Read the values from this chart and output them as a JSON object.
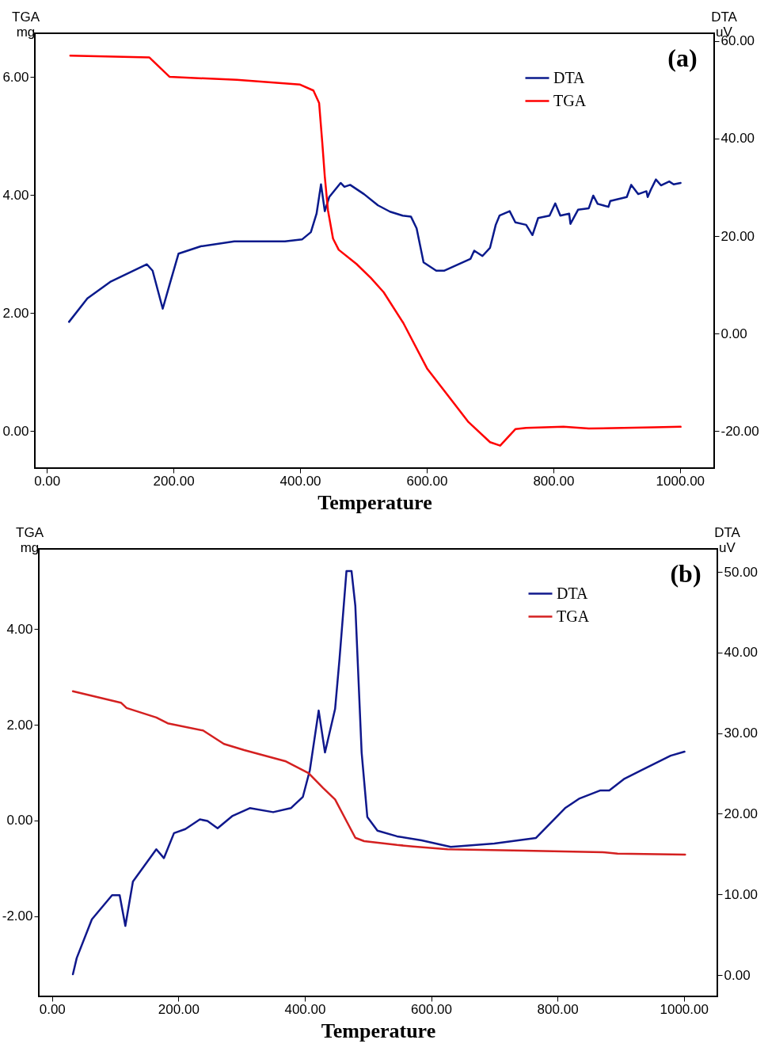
{
  "chart_data": [
    {
      "type": "line",
      "xlabel": "Temperature",
      "ylabel": "TGA\nmg",
      "y2label": "DTA\nuV",
      "annotations": [
        "(a)"
      ],
      "legend": "top right",
      "xlim": [
        -19,
        1054
      ],
      "xticks": [
        {
          "value": 0,
          "label": "0.00"
        },
        {
          "value": 200,
          "label": "200.00"
        },
        {
          "value": 400,
          "label": "400.00"
        },
        {
          "value": 600,
          "label": "600.00"
        },
        {
          "value": 800,
          "label": "800.00"
        },
        {
          "value": 1000,
          "label": "1000.00"
        }
      ],
      "ylim": [
        -0.63,
        6.74
      ],
      "yticks": [
        {
          "value": 0,
          "label": "0.00"
        },
        {
          "value": 2,
          "label": "2.00"
        },
        {
          "value": 4,
          "label": "4.00"
        },
        {
          "value": 6,
          "label": "6.00"
        }
      ],
      "y2lim": [
        -27.6,
        61.6
      ],
      "y2ticks": [
        {
          "value": -20,
          "label": "-20.00"
        },
        {
          "value": 0,
          "label": "0.00"
        },
        {
          "value": 20,
          "label": "20.00"
        },
        {
          "value": 40,
          "label": "40.00"
        },
        {
          "value": 60,
          "label": "60.00"
        }
      ],
      "series": [
        {
          "name": "DTA",
          "color": "#0a1a8c",
          "axis": "y2",
          "x": [
            35,
            64,
            100,
            158,
            167,
            183,
            194,
            208,
            243,
            296,
            376,
            403,
            417,
            426,
            433,
            439,
            446,
            464,
            470,
            479,
            501,
            523,
            542,
            562,
            575,
            584,
            595,
            615,
            628,
            669,
            675,
            688,
            700,
            709,
            715,
            731,
            740,
            757,
            767,
            776,
            794,
            803,
            811,
            825,
            827,
            839,
            856,
            863,
            870,
            887,
            890,
            916,
            923,
            934,
            947,
            949,
            954,
            962,
            970,
            983,
            990,
            1001
          ],
          "values": [
            2.4,
            7.2,
            10.6,
            14.2,
            12.9,
            5.1,
            10.1,
            16.4,
            17.9,
            18.9,
            18.9,
            19.3,
            20.8,
            24.6,
            30.6,
            25.1,
            28.0,
            30.9,
            30.1,
            30.5,
            28.6,
            26.3,
            25.0,
            24.2,
            24.0,
            21.6,
            14.6,
            12.9,
            12.9,
            15.3,
            17.0,
            15.9,
            17.6,
            22.3,
            24.2,
            25.1,
            22.8,
            22.3,
            20.2,
            23.7,
            24.2,
            26.7,
            24.2,
            24.6,
            22.5,
            25.4,
            25.7,
            28.3,
            26.6,
            26.0,
            27.2,
            28.0,
            30.5,
            28.6,
            29.2,
            28.0,
            29.5,
            31.6,
            30.4,
            31.2,
            30.6,
            30.9
          ]
        },
        {
          "name": "TGA",
          "color": "#ff0000",
          "x": [
            37,
            162,
            194,
            300,
            400,
            421,
            430,
            435,
            439,
            444,
            452,
            461,
            489,
            512,
            532,
            563,
            601,
            666,
            700,
            716,
            740,
            757,
            816,
            856,
            959,
            1001
          ],
          "values": [
            6.36,
            6.33,
            6.0,
            5.95,
            5.87,
            5.77,
            5.56,
            4.89,
            4.31,
            3.74,
            3.26,
            3.07,
            2.83,
            2.59,
            2.35,
            1.83,
            1.05,
            0.15,
            -0.19,
            -0.25,
            0.03,
            0.05,
            0.07,
            0.04,
            0.06,
            0.07
          ]
        }
      ]
    },
    {
      "type": "line",
      "xlabel": "Temperature",
      "ylabel": "TGA\nmg",
      "y2label": "DTA\nuV",
      "annotations": [
        "(b)"
      ],
      "legend": "top right",
      "xlim": [
        -21,
        1053
      ],
      "xticks": [
        {
          "value": 0,
          "label": "0.00"
        },
        {
          "value": 200,
          "label": "200.00"
        },
        {
          "value": 400,
          "label": "400.00"
        },
        {
          "value": 600,
          "label": "600.00"
        },
        {
          "value": 800,
          "label": "800.00"
        },
        {
          "value": 1000,
          "label": "1000.00"
        }
      ],
      "ylim": [
        -3.67,
        5.67
      ],
      "yticks": [
        {
          "value": -2,
          "label": "-2.00"
        },
        {
          "value": 0,
          "label": "0.00"
        },
        {
          "value": 2,
          "label": "2.00"
        },
        {
          "value": 4,
          "label": "4.00"
        }
      ],
      "y2lim": [
        -2.65,
        52.85
      ],
      "y2ticks": [
        {
          "value": 0,
          "label": "0.00"
        },
        {
          "value": 10,
          "label": "10.00"
        },
        {
          "value": 20,
          "label": "20.00"
        },
        {
          "value": 30,
          "label": "30.00"
        },
        {
          "value": 40,
          "label": "40.00"
        },
        {
          "value": 50,
          "label": "50.00"
        }
      ],
      "series": [
        {
          "name": "DTA",
          "color": "#10188c",
          "axis": "y2",
          "x": [
            33,
            39,
            63,
            95,
            107,
            116,
            128,
            165,
            177,
            193,
            211,
            234,
            246,
            262,
            285,
            313,
            350,
            378,
            397,
            408,
            422,
            432,
            448,
            455,
            466,
            474,
            480,
            490,
            499,
            515,
            546,
            585,
            631,
            700,
            766,
            812,
            835,
            868,
            882,
            905,
            933,
            979,
            1001
          ],
          "values": [
            0.1,
            2.1,
            6.9,
            9.9,
            9.9,
            6.1,
            11.6,
            15.6,
            14.5,
            17.6,
            18.1,
            19.3,
            19.1,
            18.2,
            19.7,
            20.7,
            20.2,
            20.7,
            22.1,
            25.4,
            32.8,
            27.6,
            33.0,
            39.2,
            50.1,
            50.1,
            45.8,
            27.6,
            19.6,
            17.9,
            17.2,
            16.7,
            15.9,
            16.3,
            17.0,
            20.7,
            21.9,
            22.9,
            22.9,
            24.3,
            25.4,
            27.2,
            27.7
          ]
        },
        {
          "name": "TGA",
          "color": "#d42020",
          "x": [
            33,
            109,
            118,
            165,
            183,
            239,
            272,
            304,
            369,
            406,
            429,
            448,
            480,
            494,
            546,
            571,
            626,
            747,
            872,
            895,
            1002
          ],
          "values": [
            2.7,
            2.46,
            2.35,
            2.15,
            2.03,
            1.88,
            1.6,
            1.47,
            1.24,
            0.99,
            0.68,
            0.44,
            -0.36,
            -0.43,
            -0.51,
            -0.54,
            -0.6,
            -0.63,
            -0.66,
            -0.69,
            -0.71
          ]
        }
      ]
    }
  ]
}
